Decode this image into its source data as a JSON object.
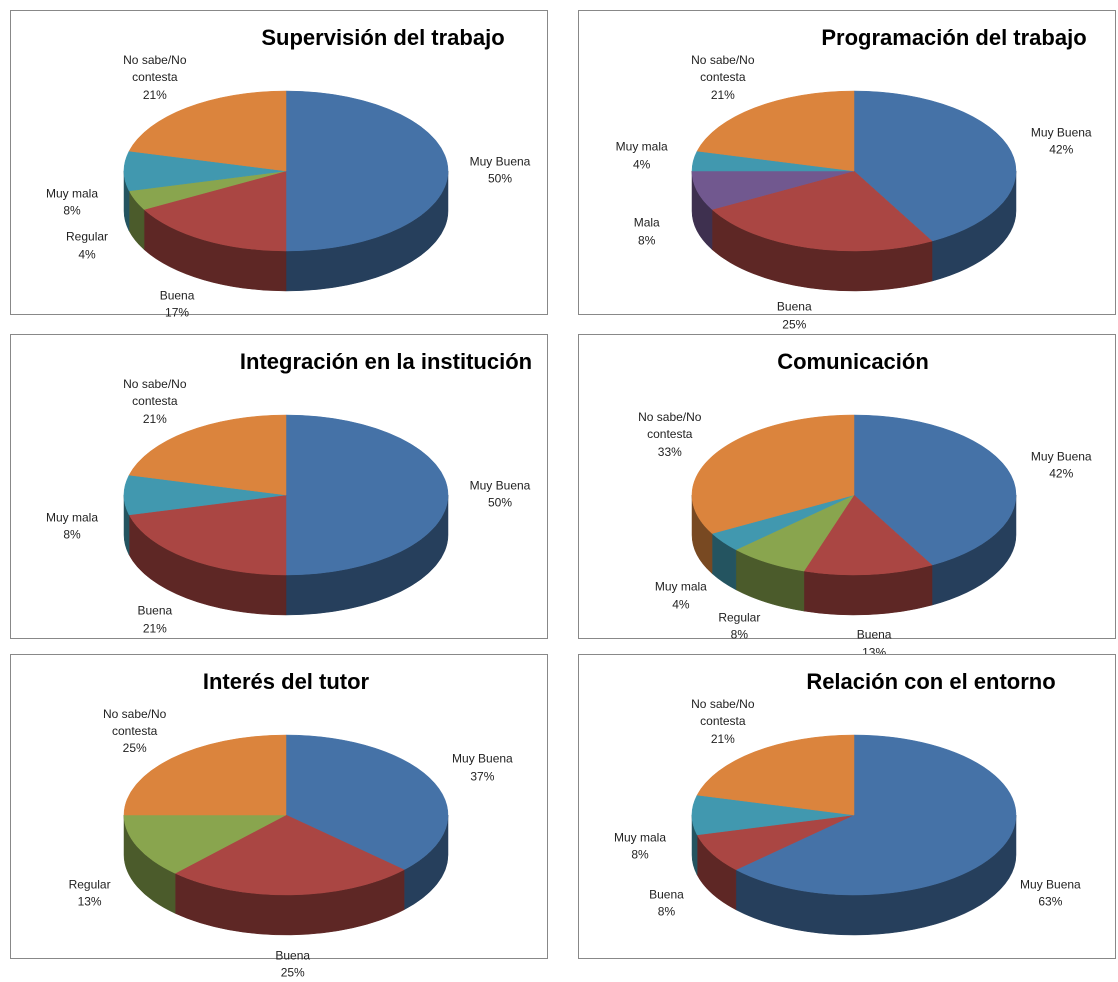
{
  "chart_data": [
    {
      "type": "pie",
      "title": "Supervisión del trabajo",
      "categories": [
        "Muy Buena",
        "Buena",
        "Regular",
        "Muy mala",
        "No sabe/No contesta"
      ],
      "values": [
        50,
        17,
        4,
        8,
        21
      ],
      "value_labels": [
        "50%",
        "17%",
        "4%",
        "8%",
        "21%"
      ],
      "colors": [
        "#4572a7",
        "#aa4643",
        "#89a54e",
        "#4198af",
        "#db843d"
      ]
    },
    {
      "type": "pie",
      "title": "Programación del trabajo",
      "categories": [
        "Muy Buena",
        "Buena",
        "Mala",
        "Muy mala",
        "No sabe/No contesta"
      ],
      "values": [
        42,
        25,
        8,
        4,
        21
      ],
      "value_labels": [
        "42%",
        "25%",
        "8%",
        "4%",
        "21%"
      ],
      "colors": [
        "#4572a7",
        "#aa4643",
        "#71588f",
        "#4198af",
        "#db843d"
      ]
    },
    {
      "type": "pie",
      "title": "Integración en la institución",
      "categories": [
        "Muy Buena",
        "Buena",
        "Muy mala",
        "No sabe/No contesta"
      ],
      "values": [
        50,
        21,
        8,
        21
      ],
      "value_labels": [
        "50%",
        "21%",
        "8%",
        "21%"
      ],
      "colors": [
        "#4572a7",
        "#aa4643",
        "#4198af",
        "#db843d"
      ]
    },
    {
      "type": "pie",
      "title": "Comunicación",
      "categories": [
        "Muy Buena",
        "Buena",
        "Regular",
        "Muy mala",
        "No sabe/No contesta"
      ],
      "values": [
        42,
        13,
        8,
        4,
        33
      ],
      "value_labels": [
        "42%",
        "13%",
        "8%",
        "4%",
        "33%"
      ],
      "colors": [
        "#4572a7",
        "#aa4643",
        "#89a54e",
        "#4198af",
        "#db843d"
      ]
    },
    {
      "type": "pie",
      "title": "Interés del tutor",
      "categories": [
        "Muy Buena",
        "Buena",
        "Regular",
        "No sabe/No contesta"
      ],
      "values": [
        37,
        25,
        13,
        25
      ],
      "value_labels": [
        "37%",
        "25%",
        "13%",
        "25%"
      ],
      "colors": [
        "#4572a7",
        "#aa4643",
        "#89a54e",
        "#db843d"
      ]
    },
    {
      "type": "pie",
      "title": "Relación con el entorno",
      "categories": [
        "Muy Buena",
        "Buena",
        "Muy mala",
        "No sabe/No contesta"
      ],
      "values": [
        63,
        8,
        8,
        21
      ],
      "value_labels": [
        "63%",
        "8%",
        "8%",
        "21%"
      ],
      "colors": [
        "#4572a7",
        "#aa4643",
        "#4198af",
        "#db843d"
      ]
    }
  ]
}
